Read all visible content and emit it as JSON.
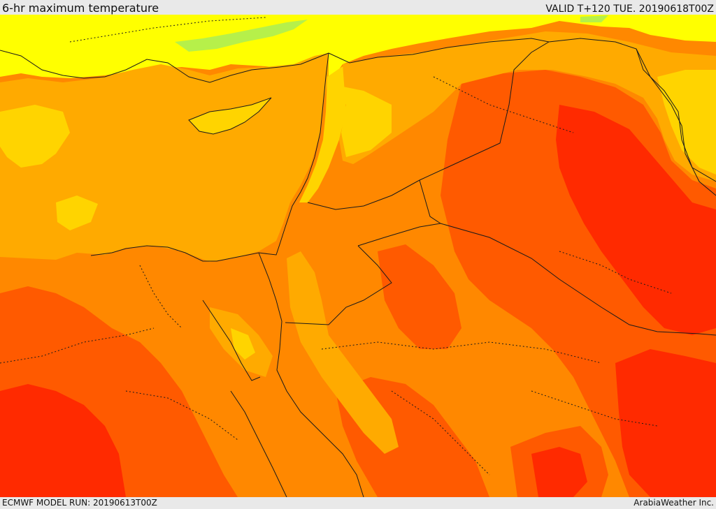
{
  "header": {
    "title": "6-hr maximum temperature",
    "valid_time": "VALID T+120 TUE. 20190618T00Z"
  },
  "footer": {
    "model_run": "ECMWF MODEL RUN: 20190613T00Z",
    "credit": "ArabiaWeather Inc."
  },
  "map": {
    "field": "6-hr maximum temperature",
    "palette": {
      "pale_green": "#b6f04a",
      "yellow": "#ffff00",
      "light_orange": "#ffd400",
      "amber": "#ffaa00",
      "orange": "#ff8800",
      "dark_orange": "#ff5a00",
      "red": "#ff2a00",
      "border_line": "#1a1a1a"
    }
  }
}
